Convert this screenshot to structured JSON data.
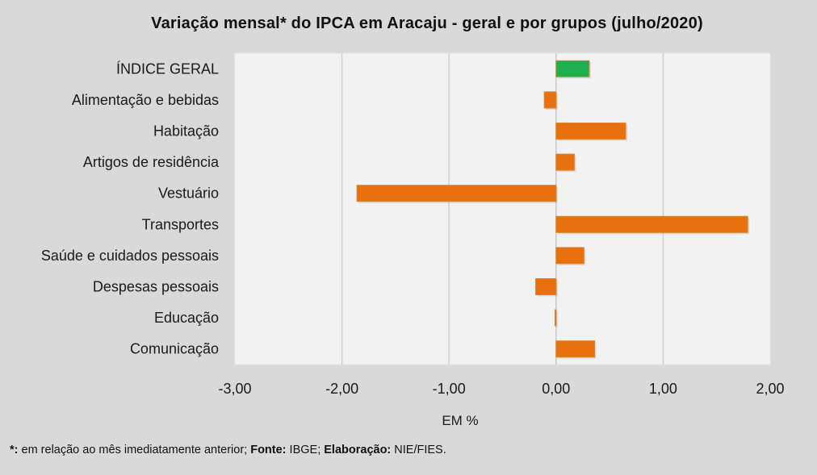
{
  "chart_data": {
    "type": "bar",
    "orientation": "horizontal",
    "title": "Variação  mensal*  do IPCA em Aracaju  - geral e por grupos  (julho/2020)",
    "xlabel": "EM %",
    "ylabel": "",
    "xlim": [
      -3,
      2
    ],
    "xticks": [
      -3,
      -2,
      -1,
      0,
      1,
      2
    ],
    "xtick_labels": [
      "-3,00",
      "-2,00",
      "-1,00",
      "0,00",
      "1,00",
      "2,00"
    ],
    "grid": "vertical",
    "legend": "none",
    "categories": [
      "ÍNDICE GERAL",
      "Alimentação e bebidas",
      "Habitação",
      "Artigos de residência",
      "Vestuário",
      "Transportes",
      "Saúde e cuidados pessoais",
      "Despesas pessoais",
      "Educação",
      "Comunicação"
    ],
    "values": [
      0.31,
      -0.11,
      0.65,
      0.17,
      -1.86,
      1.79,
      0.26,
      -0.19,
      -0.01,
      0.36
    ],
    "colors": [
      "#1db04f",
      "#e8700f",
      "#e8700f",
      "#e8700f",
      "#e8700f",
      "#e8700f",
      "#e8700f",
      "#e8700f",
      "#e8700f",
      "#e8700f"
    ],
    "bar_outline_color": "#d9822b"
  },
  "colors": {
    "background": "#d9d9d9",
    "plot_background": "#f2f2f2",
    "gridline": "#d0d0d0",
    "highlight_bar": "#1db04f",
    "bar": "#e8700f"
  },
  "footnote": {
    "marker": "*:",
    "text1": " em relação ao mês imediatamente  anterior; ",
    "source_label": "Fonte:",
    "source": " IBGE; ",
    "author_label": "Elaboração:",
    "author": " NIE/FIES."
  }
}
